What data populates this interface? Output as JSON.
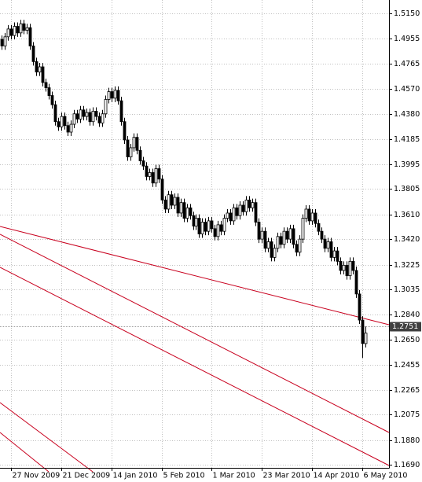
{
  "chart_data": {
    "type": "candlestick",
    "open": [
      1.495,
      1.49,
      1.497,
      1.503,
      1.498,
      1.505,
      1.5,
      1.507,
      1.502,
      1.504,
      1.49,
      1.478,
      1.47,
      1.474,
      1.462,
      1.458,
      1.452,
      1.445,
      1.432,
      1.428,
      1.436,
      1.429,
      1.424,
      1.43,
      1.438,
      1.434,
      1.441,
      1.436,
      1.439,
      1.432,
      1.44,
      1.436,
      1.431,
      1.438,
      1.449,
      1.455,
      1.45,
      1.456,
      1.448,
      1.432,
      1.418,
      1.405,
      1.412,
      1.42,
      1.41,
      1.402,
      1.398,
      1.39,
      1.393,
      1.385,
      1.396,
      1.388,
      1.372,
      1.365,
      1.376,
      1.368,
      1.374,
      1.362,
      1.37,
      1.358,
      1.366,
      1.36,
      1.352,
      1.358,
      1.346,
      1.355,
      1.348,
      1.356,
      1.35,
      1.344,
      1.353,
      1.348,
      1.358,
      1.362,
      1.356,
      1.366,
      1.36,
      1.368,
      1.363,
      1.372,
      1.366,
      1.37,
      1.355,
      1.342,
      1.348,
      1.335,
      1.34,
      1.328,
      1.335,
      1.344,
      1.338,
      1.348,
      1.342,
      1.35,
      1.338,
      1.332,
      1.342,
      1.358,
      1.365,
      1.356,
      1.362,
      1.354,
      1.348,
      1.342,
      1.335,
      1.34,
      1.328,
      1.333,
      1.325,
      1.318,
      1.322,
      1.314,
      1.325,
      1.318,
      1.3,
      1.28,
      1.262
    ],
    "high": [
      1.498,
      1.5,
      1.506,
      1.506,
      1.508,
      1.508,
      1.51,
      1.51,
      1.507,
      1.507,
      1.493,
      1.481,
      1.477,
      1.477,
      1.465,
      1.461,
      1.455,
      1.448,
      1.435,
      1.439,
      1.439,
      1.432,
      1.433,
      1.441,
      1.441,
      1.444,
      1.444,
      1.442,
      1.442,
      1.443,
      1.443,
      1.439,
      1.441,
      1.452,
      1.458,
      1.458,
      1.459,
      1.459,
      1.451,
      1.435,
      1.421,
      1.415,
      1.423,
      1.423,
      1.413,
      1.405,
      1.401,
      1.396,
      1.396,
      1.399,
      1.399,
      1.391,
      1.375,
      1.379,
      1.379,
      1.377,
      1.377,
      1.373,
      1.373,
      1.369,
      1.369,
      1.363,
      1.361,
      1.361,
      1.358,
      1.358,
      1.359,
      1.359,
      1.353,
      1.356,
      1.356,
      1.361,
      1.365,
      1.365,
      1.369,
      1.369,
      1.371,
      1.371,
      1.375,
      1.375,
      1.373,
      1.373,
      1.358,
      1.351,
      1.351,
      1.343,
      1.343,
      1.338,
      1.347,
      1.347,
      1.351,
      1.351,
      1.353,
      1.353,
      1.341,
      1.345,
      1.361,
      1.368,
      1.368,
      1.365,
      1.365,
      1.357,
      1.351,
      1.345,
      1.343,
      1.343,
      1.336,
      1.336,
      1.328,
      1.325,
      1.325,
      1.328,
      1.328,
      1.321,
      1.303,
      1.283,
      1.275
    ],
    "low": [
      1.487,
      1.487,
      1.494,
      1.495,
      1.495,
      1.497,
      1.497,
      1.499,
      1.499,
      1.487,
      1.475,
      1.467,
      1.467,
      1.459,
      1.455,
      1.449,
      1.442,
      1.429,
      1.425,
      1.425,
      1.426,
      1.421,
      1.421,
      1.427,
      1.431,
      1.431,
      1.433,
      1.433,
      1.429,
      1.429,
      1.433,
      1.428,
      1.428,
      1.435,
      1.446,
      1.447,
      1.447,
      1.445,
      1.429,
      1.415,
      1.402,
      1.402,
      1.409,
      1.407,
      1.399,
      1.395,
      1.387,
      1.387,
      1.382,
      1.382,
      1.385,
      1.369,
      1.362,
      1.362,
      1.365,
      1.365,
      1.359,
      1.359,
      1.355,
      1.355,
      1.357,
      1.349,
      1.349,
      1.343,
      1.343,
      1.345,
      1.345,
      1.347,
      1.341,
      1.341,
      1.345,
      1.345,
      1.355,
      1.353,
      1.353,
      1.357,
      1.357,
      1.36,
      1.36,
      1.363,
      1.363,
      1.352,
      1.339,
      1.339,
      1.332,
      1.332,
      1.325,
      1.325,
      1.332,
      1.335,
      1.335,
      1.339,
      1.339,
      1.335,
      1.329,
      1.329,
      1.339,
      1.355,
      1.353,
      1.353,
      1.351,
      1.345,
      1.339,
      1.332,
      1.332,
      1.325,
      1.325,
      1.322,
      1.315,
      1.315,
      1.311,
      1.311,
      1.315,
      1.297,
      1.277,
      1.251,
      1.259
    ],
    "close": [
      1.49,
      1.497,
      1.503,
      1.498,
      1.505,
      1.5,
      1.507,
      1.502,
      1.504,
      1.49,
      1.478,
      1.47,
      1.474,
      1.462,
      1.458,
      1.452,
      1.445,
      1.432,
      1.428,
      1.436,
      1.429,
      1.424,
      1.43,
      1.438,
      1.434,
      1.441,
      1.436,
      1.439,
      1.432,
      1.44,
      1.436,
      1.431,
      1.438,
      1.449,
      1.455,
      1.45,
      1.456,
      1.448,
      1.432,
      1.418,
      1.405,
      1.412,
      1.42,
      1.41,
      1.402,
      1.398,
      1.39,
      1.393,
      1.385,
      1.396,
      1.388,
      1.372,
      1.365,
      1.376,
      1.368,
      1.374,
      1.362,
      1.37,
      1.358,
      1.366,
      1.36,
      1.352,
      1.358,
      1.346,
      1.355,
      1.348,
      1.356,
      1.35,
      1.344,
      1.353,
      1.348,
      1.358,
      1.362,
      1.356,
      1.366,
      1.36,
      1.368,
      1.363,
      1.372,
      1.366,
      1.37,
      1.355,
      1.342,
      1.348,
      1.335,
      1.34,
      1.328,
      1.335,
      1.344,
      1.338,
      1.348,
      1.342,
      1.35,
      1.338,
      1.332,
      1.342,
      1.358,
      1.365,
      1.356,
      1.362,
      1.354,
      1.348,
      1.342,
      1.335,
      1.34,
      1.328,
      1.333,
      1.325,
      1.318,
      1.322,
      1.314,
      1.325,
      1.318,
      1.3,
      1.28,
      1.262,
      1.27
    ],
    "bid": 1.2751,
    "xlim": [
      -0.5,
      123.5
    ],
    "xticks": [
      {
        "value": 3,
        "label": "27 Nov 2009"
      },
      {
        "value": 19,
        "label": "21 Dec 2009"
      },
      {
        "value": 35,
        "label": "14 Jan 2010"
      },
      {
        "value": 51,
        "label": "5 Feb 2010"
      },
      {
        "value": 67,
        "label": "1 Mar 2010"
      },
      {
        "value": 83,
        "label": "23 Mar 2010"
      },
      {
        "value": 99,
        "label": "14 Apr 2010"
      },
      {
        "value": 115,
        "label": "6 May 2010"
      }
    ],
    "ylim": [
      1.1668,
      1.5252
    ],
    "yticks": [
      {
        "value": 1.515,
        "label": "1.5150"
      },
      1.4955,
      1.4765,
      {
        "value": 1.457,
        "label": "1.4570"
      },
      {
        "value": 1.438,
        "label": "1.4380"
      },
      1.4185,
      1.3995,
      1.3805,
      {
        "value": 1.361,
        "label": "1.3610"
      },
      {
        "value": 1.342,
        "label": "1.3420"
      },
      1.3225,
      1.3035,
      {
        "value": 1.284,
        "label": "1.2840"
      },
      {
        "value": 1.265,
        "label": "1.2650"
      },
      1.2455,
      1.2265,
      1.2075,
      {
        "value": 1.188,
        "label": "1.1880"
      },
      {
        "value": 1.169,
        "label": "1.1690"
      }
    ],
    "grid": true,
    "color": "#000000"
  }
}
